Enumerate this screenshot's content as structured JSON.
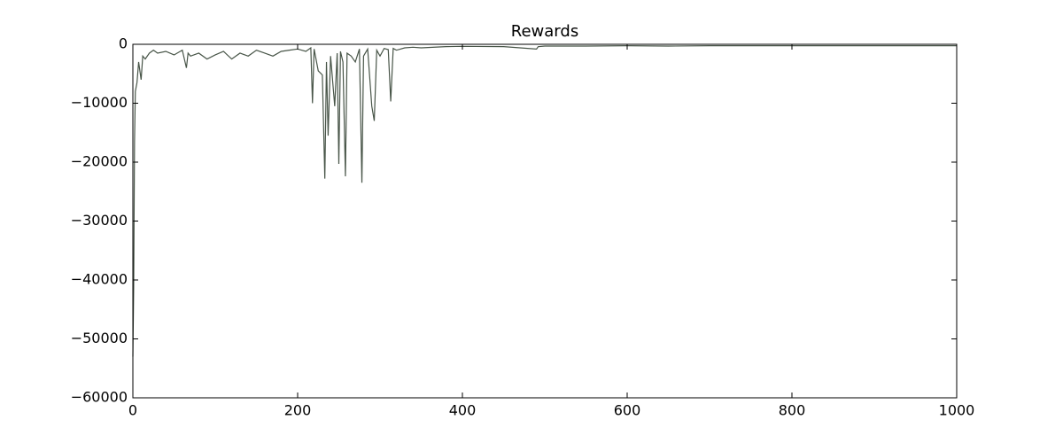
{
  "chart_data": {
    "type": "line",
    "title": "Rewards",
    "x": [
      0,
      1,
      2,
      3,
      5,
      7,
      10,
      12,
      15,
      20,
      25,
      30,
      40,
      50,
      60,
      65,
      67,
      70,
      80,
      90,
      100,
      110,
      120,
      130,
      140,
      150,
      160,
      170,
      180,
      190,
      200,
      210,
      216,
      218,
      220,
      225,
      230,
      233,
      235,
      237,
      240,
      245,
      248,
      250,
      252,
      255,
      258,
      260,
      265,
      270,
      275,
      278,
      280,
      285,
      290,
      293,
      296,
      300,
      305,
      310,
      313,
      316,
      320,
      330,
      340,
      350,
      380,
      400,
      450,
      490,
      492,
      500,
      550,
      600,
      650,
      700,
      750,
      800,
      850,
      900,
      950,
      1000
    ],
    "values": [
      -53000,
      -41000,
      -16500,
      -8000,
      -6500,
      -3000,
      -6000,
      -2000,
      -2500,
      -1500,
      -1000,
      -1500,
      -1200,
      -1800,
      -1000,
      -4000,
      -1500,
      -2000,
      -1500,
      -2500,
      -1800,
      -1200,
      -2500,
      -1500,
      -2000,
      -1000,
      -1500,
      -2000,
      -1200,
      -1000,
      -800,
      -1200,
      -600,
      -10000,
      -800,
      -4500,
      -5200,
      -22800,
      -3000,
      -15500,
      -2000,
      -10500,
      -1500,
      -20300,
      -1200,
      -3000,
      -22400,
      -1500,
      -2000,
      -3000,
      -800,
      -23500,
      -2000,
      -800,
      -10500,
      -13000,
      -1000,
      -2000,
      -700,
      -900,
      -9700,
      -700,
      -1000,
      -600,
      -500,
      -600,
      -400,
      -350,
      -400,
      -800,
      -400,
      -300,
      -300,
      -250,
      -300,
      -250,
      -250,
      -250,
      -250,
      -250,
      -250,
      -250
    ],
    "color": "#1a2a1a",
    "xlim": [
      0,
      1000
    ],
    "xticks": [
      0,
      200,
      400,
      600,
      800,
      1000
    ],
    "ylim": [
      -60000,
      0
    ],
    "yticks": [
      0,
      {
        "value": -10000,
        "label": "−10000"
      },
      {
        "value": -20000,
        "label": "−20000"
      },
      {
        "value": -30000,
        "label": "−30000"
      },
      {
        "value": -40000,
        "label": "−40000"
      },
      {
        "value": -50000,
        "label": "−50000"
      },
      {
        "value": -60000,
        "label": "−60000"
      }
    ]
  }
}
